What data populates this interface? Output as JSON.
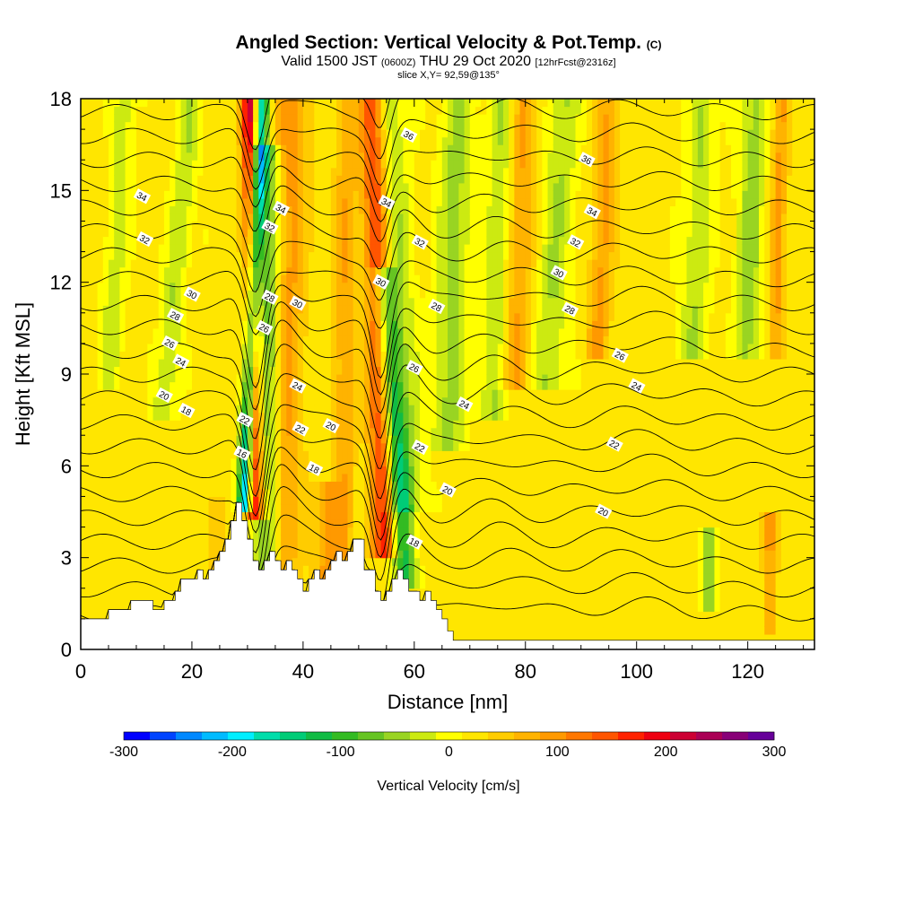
{
  "header": {
    "title_main": "Angled Section: Vertical Velocity & Pot.Temp.",
    "title_mark": "(C)",
    "valid_prefix": "Valid 1500 JST",
    "valid_utc": "(0600Z)",
    "valid_date": "THU 29 Oct 2020",
    "valid_fcst": "[12hrFcst@2316z]",
    "slice": "slice X,Y= 92,59@135°"
  },
  "chart_data": {
    "type": "heatmap",
    "xlabel": "Distance [nm]",
    "ylabel": "Height [Kft MSL]",
    "xlim": [
      0,
      132
    ],
    "ylim": [
      0,
      18
    ],
    "x_ticks": [
      0,
      20,
      40,
      60,
      80,
      100,
      120
    ],
    "y_ticks": [
      0,
      3,
      6,
      9,
      12,
      15,
      18
    ],
    "terrain": {
      "x": [
        0,
        5,
        5,
        9,
        9,
        13,
        13,
        15,
        15,
        17,
        17,
        18,
        18,
        21,
        21,
        22,
        22,
        23,
        23,
        24,
        24,
        25,
        25,
        26,
        26,
        27,
        27,
        28,
        28,
        29,
        29,
        30,
        30,
        31,
        31,
        32,
        32,
        33,
        33,
        34,
        34,
        35,
        35,
        36,
        36,
        37,
        37,
        38,
        38,
        39,
        39,
        40,
        40,
        41,
        41,
        42,
        42,
        43,
        43,
        44,
        44,
        45,
        45,
        46,
        46,
        47,
        47,
        48,
        48,
        49,
        49,
        50,
        50,
        51,
        51,
        53,
        53,
        54,
        54,
        55,
        55,
        56,
        56,
        57,
        57,
        58,
        58,
        59,
        59,
        61,
        61,
        62,
        62,
        63,
        63,
        64,
        64,
        65,
        65,
        66,
        66,
        67,
        67,
        68,
        68,
        69,
        69,
        71,
        71,
        132
      ],
      "height": [
        1.0,
        1.0,
        1.3,
        1.3,
        1.6,
        1.6,
        1.3,
        1.3,
        1.6,
        1.6,
        1.9,
        1.9,
        2.3,
        2.3,
        2.6,
        2.6,
        2.3,
        2.3,
        2.6,
        2.6,
        2.9,
        2.9,
        3.2,
        3.2,
        3.6,
        3.6,
        4.2,
        4.2,
        4.8,
        4.8,
        4.2,
        4.2,
        3.6,
        3.6,
        2.9,
        2.9,
        2.6,
        2.6,
        2.9,
        2.9,
        3.2,
        3.2,
        2.9,
        2.9,
        2.6,
        2.6,
        2.9,
        2.9,
        2.6,
        2.6,
        2.3,
        2.3,
        1.9,
        1.9,
        2.3,
        2.3,
        2.6,
        2.6,
        2.3,
        2.3,
        2.6,
        2.6,
        2.9,
        2.9,
        3.2,
        3.2,
        2.9,
        2.9,
        3.2,
        3.2,
        3.6,
        3.6,
        3.6,
        3.6,
        2.6,
        2.6,
        1.9,
        1.9,
        1.6,
        1.6,
        1.9,
        1.9,
        2.3,
        2.3,
        2.6,
        2.6,
        2.3,
        2.3,
        1.9,
        1.9,
        1.6,
        1.6,
        1.9,
        1.9,
        1.6,
        1.6,
        1.3,
        1.3,
        1.0,
        1.0,
        0.6,
        0.6,
        0.3,
        0.3,
        0.3,
        0.3,
        0.3,
        0.3,
        0.3,
        0.3
      ]
    },
    "velocity_features": [
      {
        "x_top": 30.5,
        "x_bottom": 31.5,
        "y_top": 18,
        "y_bottom": 4.8,
        "value": 220,
        "width": 1.6
      },
      {
        "x_top": 32.5,
        "x_bottom": 29.5,
        "y_top": 18,
        "y_bottom": 5.0,
        "value": -250,
        "width": 1.3
      },
      {
        "x_top": 33.5,
        "x_bottom": 33.5,
        "y_top": 16,
        "y_bottom": 3.0,
        "value": -120,
        "width": 2.5
      },
      {
        "x_top": 52.5,
        "x_bottom": 54.5,
        "y_top": 18,
        "y_bottom": 3.6,
        "value": 150,
        "width": 2.2
      },
      {
        "x_top": 54.5,
        "x_bottom": 58.5,
        "y_top": 12,
        "y_bottom": 2.5,
        "value": -140,
        "width": 2.0
      },
      {
        "x_top": 55.5,
        "x_bottom": 59.0,
        "y_top": 18,
        "y_bottom": 5.0,
        "value": -60,
        "width": 3.0
      },
      {
        "x_top": 38,
        "x_bottom": 36,
        "y_top": 18,
        "y_bottom": 2.5,
        "value": 80,
        "width": 3.0
      },
      {
        "x_top": 48,
        "x_bottom": 47,
        "y_top": 18,
        "y_bottom": 2.5,
        "value": 60,
        "width": 2.0
      },
      {
        "x_top": 20,
        "x_bottom": 15,
        "y_top": 18,
        "y_bottom": 8,
        "value": -60,
        "width": 2.0
      },
      {
        "x_top": 8,
        "x_bottom": 5,
        "y_top": 18,
        "y_bottom": 9,
        "value": -50,
        "width": 2.0
      },
      {
        "x_top": 68,
        "x_bottom": 66,
        "y_top": 18,
        "y_bottom": 7,
        "value": -70,
        "width": 3.0
      },
      {
        "x_top": 76,
        "x_bottom": 74,
        "y_top": 18,
        "y_bottom": 8,
        "value": -60,
        "width": 2.5
      },
      {
        "x_top": 80,
        "x_bottom": 78,
        "y_top": 18,
        "y_bottom": 9,
        "value": 70,
        "width": 2.5
      },
      {
        "x_top": 87,
        "x_bottom": 84,
        "y_top": 18,
        "y_bottom": 9,
        "value": -60,
        "width": 3.0
      },
      {
        "x_top": 95,
        "x_bottom": 93,
        "y_top": 18,
        "y_bottom": 10,
        "value": 70,
        "width": 2.0
      },
      {
        "x_top": 112,
        "x_bottom": 110,
        "y_top": 18,
        "y_bottom": 10,
        "value": -60,
        "width": 2.5
      },
      {
        "x_top": 121,
        "x_bottom": 120,
        "y_top": 18,
        "y_bottom": 10,
        "value": -70,
        "width": 2.5
      },
      {
        "x_top": 126,
        "x_bottom": 125,
        "y_top": 18,
        "y_bottom": 10,
        "value": 70,
        "width": 1.5
      },
      {
        "x_top": 113,
        "x_bottom": 113,
        "y_top": 3.6,
        "y_bottom": 1.8,
        "value": -80,
        "width": 1.2
      },
      {
        "x_top": 124,
        "x_bottom": 124,
        "y_top": 4,
        "y_bottom": 1.0,
        "value": 70,
        "width": 1.2
      },
      {
        "x_top": 44,
        "x_bottom": 44,
        "y_top": 5,
        "y_bottom": 2,
        "value": 70,
        "width": 2.0
      },
      {
        "x_top": 24,
        "x_bottom": 24,
        "y_top": 4.5,
        "y_bottom": 2.5,
        "value": 40,
        "width": 1.5
      }
    ],
    "contour_labels": [
      {
        "text": "36",
        "x": 59,
        "y": 16.8
      },
      {
        "text": "36",
        "x": 91,
        "y": 16.0
      },
      {
        "text": "34",
        "x": 11,
        "y": 14.8
      },
      {
        "text": "34",
        "x": 36,
        "y": 14.4
      },
      {
        "text": "34",
        "x": 55,
        "y": 14.6
      },
      {
        "text": "34",
        "x": 92,
        "y": 14.3
      },
      {
        "text": "32",
        "x": 11.5,
        "y": 13.4
      },
      {
        "text": "32",
        "x": 34,
        "y": 13.8
      },
      {
        "text": "32",
        "x": 61,
        "y": 13.3
      },
      {
        "text": "32",
        "x": 89,
        "y": 13.3
      },
      {
        "text": "30",
        "x": 20,
        "y": 11.6
      },
      {
        "text": "30",
        "x": 54,
        "y": 12.0
      },
      {
        "text": "30",
        "x": 86,
        "y": 12.3
      },
      {
        "text": "30",
        "x": 39,
        "y": 11.3
      },
      {
        "text": "28",
        "x": 17,
        "y": 10.9
      },
      {
        "text": "28",
        "x": 34,
        "y": 11.5
      },
      {
        "text": "28",
        "x": 64,
        "y": 11.2
      },
      {
        "text": "28",
        "x": 88,
        "y": 11.1
      },
      {
        "text": "26",
        "x": 16,
        "y": 10.0
      },
      {
        "text": "26",
        "x": 33,
        "y": 10.5
      },
      {
        "text": "26",
        "x": 60,
        "y": 9.2
      },
      {
        "text": "26",
        "x": 97,
        "y": 9.6
      },
      {
        "text": "24",
        "x": 18,
        "y": 9.4
      },
      {
        "text": "24",
        "x": 39,
        "y": 8.6
      },
      {
        "text": "24",
        "x": 69,
        "y": 8.0
      },
      {
        "text": "24",
        "x": 100,
        "y": 8.6
      },
      {
        "text": "20",
        "x": 15,
        "y": 8.3
      },
      {
        "text": "20",
        "x": 45,
        "y": 7.3
      },
      {
        "text": "20",
        "x": 66,
        "y": 5.2
      },
      {
        "text": "20",
        "x": 94,
        "y": 4.5
      },
      {
        "text": "18",
        "x": 19,
        "y": 7.8
      },
      {
        "text": "18",
        "x": 42,
        "y": 5.9
      },
      {
        "text": "18",
        "x": 60,
        "y": 3.5
      },
      {
        "text": "22",
        "x": 29.5,
        "y": 7.5
      },
      {
        "text": "22",
        "x": 39.5,
        "y": 7.2
      },
      {
        "text": "22",
        "x": 61,
        "y": 6.6
      },
      {
        "text": "22",
        "x": 96,
        "y": 6.7
      },
      {
        "text": "16",
        "x": 29,
        "y": 6.4
      }
    ],
    "colorbar": {
      "title": "Vertical Velocity [cm/s]",
      "min": -300,
      "max": 300,
      "step": 25,
      "tick_values": [
        -300,
        -200,
        -100,
        0,
        100,
        200,
        300
      ],
      "tick_labels": [
        "-300",
        "-200",
        "-100",
        "0",
        "100",
        "200",
        "300"
      ],
      "colors": [
        "#0000ff",
        "#0044ff",
        "#0088ff",
        "#00bbff",
        "#00eeff",
        "#00ddaa",
        "#00cc77",
        "#11bb44",
        "#33bb22",
        "#66c422",
        "#99d422",
        "#ccea11",
        "#ffff00",
        "#ffe600",
        "#ffcc00",
        "#ffb300",
        "#ff9900",
        "#ff7700",
        "#ff5500",
        "#ff2200",
        "#ee0011",
        "#cc0033",
        "#aa0055",
        "#880077",
        "#660099"
      ]
    },
    "grid": false
  }
}
